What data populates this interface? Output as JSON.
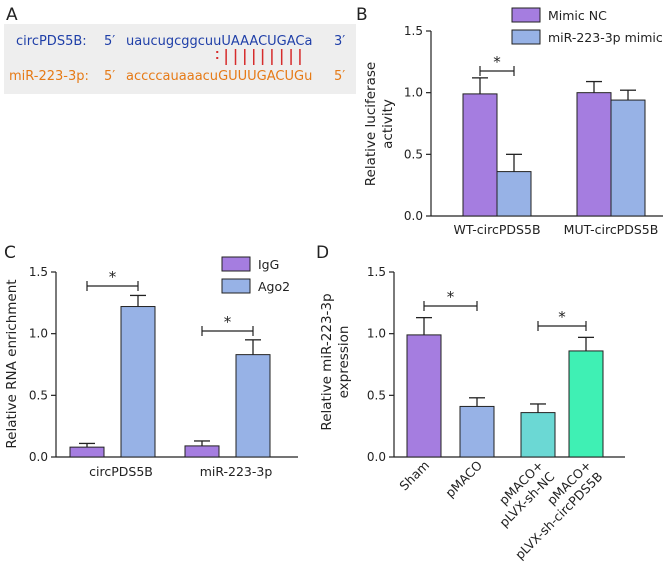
{
  "panel_letters": [
    "A",
    "B",
    "C",
    "D"
  ],
  "panel_a": {
    "row1": {
      "label": "circPDS5B:",
      "five": "5′",
      "seq_lower": "uaucugcggcuu",
      "seq_upper": "UAAACUGACa",
      "three": "3′"
    },
    "row2": {
      "label": "miR-223-3p:",
      "five": "5′",
      "seq_lower": "accccauaaacu",
      "seq_upper": "GUUUGACUGu",
      "three": "5′"
    },
    "colors": {
      "row1": "#1f3fa8",
      "row2": "#e67a16",
      "pairs": "#d62c2c",
      "box": "#eeeeee"
    }
  },
  "chart_data": [
    {
      "panel": "B",
      "type": "bar",
      "ylabel": "Relative luciferase activity",
      "ylabel_lines": [
        "Relative luciferase",
        "activity"
      ],
      "ylim": [
        0,
        1.5
      ],
      "yticks": [
        "0.0",
        "0.5",
        "1.0",
        "1.5"
      ],
      "categories": [
        "WT-circPDS5B",
        "MUT-circPDS5B"
      ],
      "series": [
        {
          "name": "Mimic NC",
          "values": [
            0.99,
            1.0
          ],
          "errors": [
            0.13,
            0.09
          ],
          "color": "#a57de0"
        },
        {
          "name": "miR-223-3p mimic",
          "values": [
            0.36,
            0.94
          ],
          "errors": [
            0.14,
            0.08
          ],
          "color": "#97b2e6"
        }
      ],
      "significance": [
        {
          "label": "*"
        }
      ]
    },
    {
      "panel": "C",
      "type": "bar",
      "ylabel": "Relative RNA enrichment",
      "ylim": [
        0,
        1.5
      ],
      "yticks": [
        "0.0",
        "0.5",
        "1.0",
        "1.5"
      ],
      "categories": [
        "circPDS5B",
        "miR-223-3p"
      ],
      "series": [
        {
          "name": "IgG",
          "values": [
            0.08,
            0.09
          ],
          "errors": [
            0.03,
            0.04
          ],
          "color": "#a57de0"
        },
        {
          "name": "Ago2",
          "values": [
            1.22,
            0.83
          ],
          "errors": [
            0.09,
            0.12
          ],
          "color": "#97b2e6"
        }
      ],
      "significance": [
        {
          "label": "*"
        },
        {
          "label": "*"
        }
      ]
    },
    {
      "panel": "D",
      "type": "bar",
      "ylabel": "Relative miR-223-3p expression",
      "ylabel_lines": [
        "Relative miR-223-3p",
        "expression"
      ],
      "ylim": [
        0,
        1.5
      ],
      "yticks": [
        "0.0",
        "0.5",
        "1.0",
        "1.5"
      ],
      "categories": [
        "Sham",
        "pMACO",
        "pMACO+ pLVX-sh-NC",
        "pMACO+ pLVX-sh-circPDS5B"
      ],
      "category_lines": [
        [
          "Sham"
        ],
        [
          "pMACO"
        ],
        [
          "pMACO+",
          "pLVX-sh-NC"
        ],
        [
          "pMACO+",
          "pLVX-sh-circPDS5B"
        ]
      ],
      "values": [
        0.99,
        0.41,
        0.36,
        0.86
      ],
      "errors": [
        0.14,
        0.07,
        0.07,
        0.11
      ],
      "colors": [
        "#a57de0",
        "#97b2e6",
        "#6bd8d4",
        "#3ff0b4"
      ],
      "significance": [
        {
          "label": "*"
        },
        {
          "label": "*"
        }
      ]
    }
  ]
}
